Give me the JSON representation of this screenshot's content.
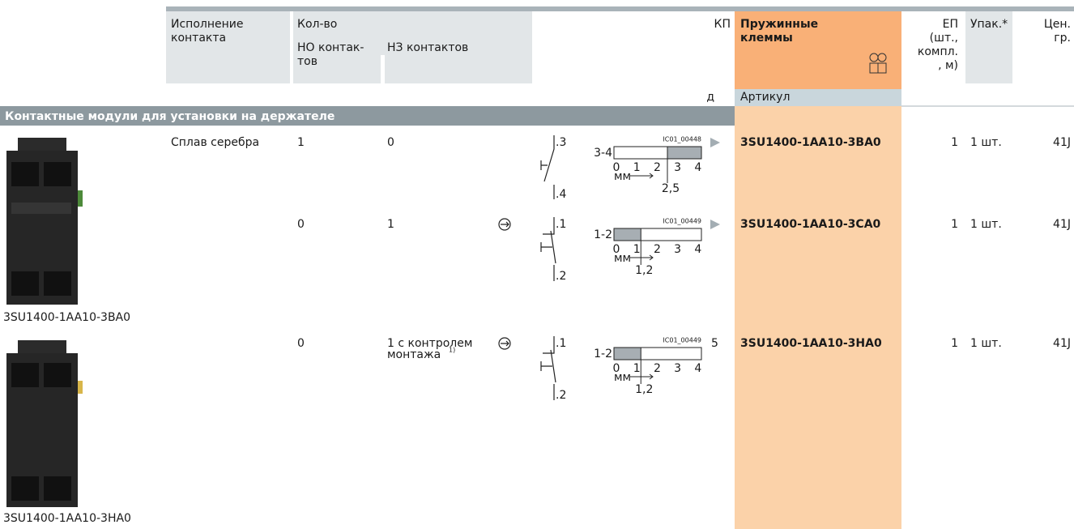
{
  "header": {
    "contact_type": [
      "Исполнение",
      "контакта"
    ],
    "quantity": "Кол-во",
    "no_contacts": [
      "НО контак-",
      "тов"
    ],
    "nc_contacts": "НЗ контактов",
    "kp": "КП",
    "spring_terminals": [
      "Пружинные",
      "клеммы"
    ],
    "pu": [
      "ЕП",
      "(шт.,",
      "компл.",
      ", м)"
    ],
    "pack": "Упак.*",
    "price_group": [
      "Цен.",
      "гр."
    ],
    "d": "д",
    "article": "Артикул"
  },
  "section": "Контактные модули для установки на держателе",
  "images": [
    {
      "caption": "3SU1400-1AA10-3BA0"
    },
    {
      "caption": "3SU1400-1AA10-3HA0"
    }
  ],
  "rows": [
    {
      "contact": "Сплав серебра",
      "no": "1",
      "nc": [
        "0"
      ],
      "terminals": [
        ".3",
        ".4"
      ],
      "diagram": {
        "label": "3-4",
        "code": "IC01_00448",
        "scale": [
          "0",
          "1",
          "2",
          "3",
          "4"
        ],
        "unit": "мм",
        "point": "2,5"
      },
      "article": "3SU1400-1AA10-3BA0",
      "pu": "1",
      "pack": "1 шт.",
      "price_group": "41J"
    },
    {
      "no": "0",
      "nc": [
        "1"
      ],
      "terminals": [
        ".1",
        ".2"
      ],
      "diagram": {
        "label": "1-2",
        "code": "IC01_00449",
        "scale": [
          "0",
          "1",
          "2",
          "3",
          "4"
        ],
        "unit": "мм",
        "point": "1,2"
      },
      "article": "3SU1400-1AA10-3CA0",
      "pu": "1",
      "pack": "1 шт.",
      "price_group": "41J"
    },
    {
      "no": "0",
      "nc": [
        "1 с контролем",
        "монтажа"
      ],
      "footnote": "1)",
      "terminals": [
        ".1",
        ".2"
      ],
      "diagram": {
        "label": "1-2",
        "code": "IC01_00449",
        "scale": [
          "0",
          "1",
          "2",
          "3",
          "4"
        ],
        "unit": "мм",
        "point": "1,2"
      },
      "kp": "5",
      "article": "3SU1400-1AA10-3HA0",
      "pu": "1",
      "pack": "1 шт.",
      "price_group": "41J"
    }
  ]
}
